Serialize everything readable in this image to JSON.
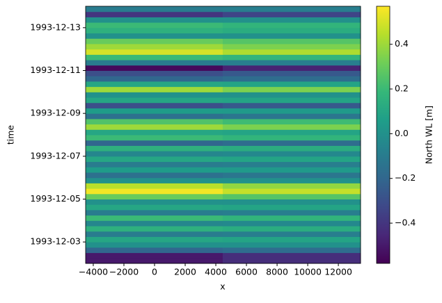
{
  "chart_data": {
    "type": "heatmap",
    "xlabel": "x",
    "ylabel": "time",
    "colorbar_label": "North WL [m]",
    "colormap": "viridis",
    "x_edges": [
      -4500,
      4450,
      13450
    ],
    "xlim": [
      -4500,
      13450
    ],
    "xticks": [
      {
        "value": -4000,
        "label": "−4000"
      },
      {
        "value": -2000,
        "label": "−2000"
      },
      0,
      2000,
      4000,
      6000,
      8000,
      10000,
      12000
    ],
    "ylim": [
      "1993-12-02",
      "1993-12-14"
    ],
    "yticks": [
      "1993-12-03",
      "1993-12-05",
      "1993-12-07",
      "1993-12-09",
      "1993-12-11",
      "1993-12-13"
    ],
    "clim": [
      -0.58,
      0.57
    ],
    "cticks": [
      {
        "value": -0.4,
        "label": "−0.4"
      },
      {
        "value": -0.2,
        "label": "−0.2"
      },
      {
        "value": 0,
        "label": "0.0"
      },
      0.2,
      0.4
    ],
    "values": [
      [
        -0.5,
        -0.43
      ],
      [
        -0.5,
        -0.43
      ],
      [
        -0.2,
        -0.17
      ],
      [
        0.0,
        0
      ],
      [
        0.1,
        0.09
      ],
      [
        -0.1,
        -0.09
      ],
      [
        0.15,
        0.13
      ],
      [
        -0.05,
        -0.04
      ],
      [
        0.2,
        0.17
      ],
      [
        -0.1,
        -0.09
      ],
      [
        0.1,
        0.09
      ],
      [
        0.0,
        0
      ],
      [
        0.3,
        0.26
      ],
      [
        0.55,
        0.47
      ],
      [
        0.45,
        0.38
      ],
      [
        0.0,
        0
      ],
      [
        -0.15,
        -0.13
      ],
      [
        0.05,
        0.04
      ],
      [
        -0.1,
        -0.09
      ],
      [
        0.1,
        0.09
      ],
      [
        -0.05,
        -0.04
      ],
      [
        0.15,
        0.13
      ],
      [
        -0.2,
        -0.17
      ],
      [
        0.2,
        0.17
      ],
      [
        0.1,
        0.09
      ],
      [
        0.4,
        0.34
      ],
      [
        0.25,
        0.21
      ],
      [
        -0.15,
        -0.13
      ],
      [
        0.05,
        0.04
      ],
      [
        -0.3,
        -0.26
      ],
      [
        0.1,
        0.09
      ],
      [
        0.0,
        0
      ],
      [
        0.4,
        0.34
      ],
      [
        0.1,
        0.09
      ],
      [
        -0.2,
        -0.17
      ],
      [
        -0.3,
        -0.26
      ],
      [
        -0.55,
        -0.47
      ],
      [
        -0.1,
        -0.09
      ],
      [
        0.2,
        0.17
      ],
      [
        0.5,
        0.43
      ],
      [
        0.4,
        0.34
      ],
      [
        0.3,
        0.26
      ],
      [
        0.0,
        0
      ],
      [
        0.15,
        0.13
      ],
      [
        0.2,
        0.17
      ],
      [
        0.0,
        0
      ],
      [
        -0.4,
        -0.34
      ],
      [
        -0.1,
        -0.09
      ]
    ]
  }
}
